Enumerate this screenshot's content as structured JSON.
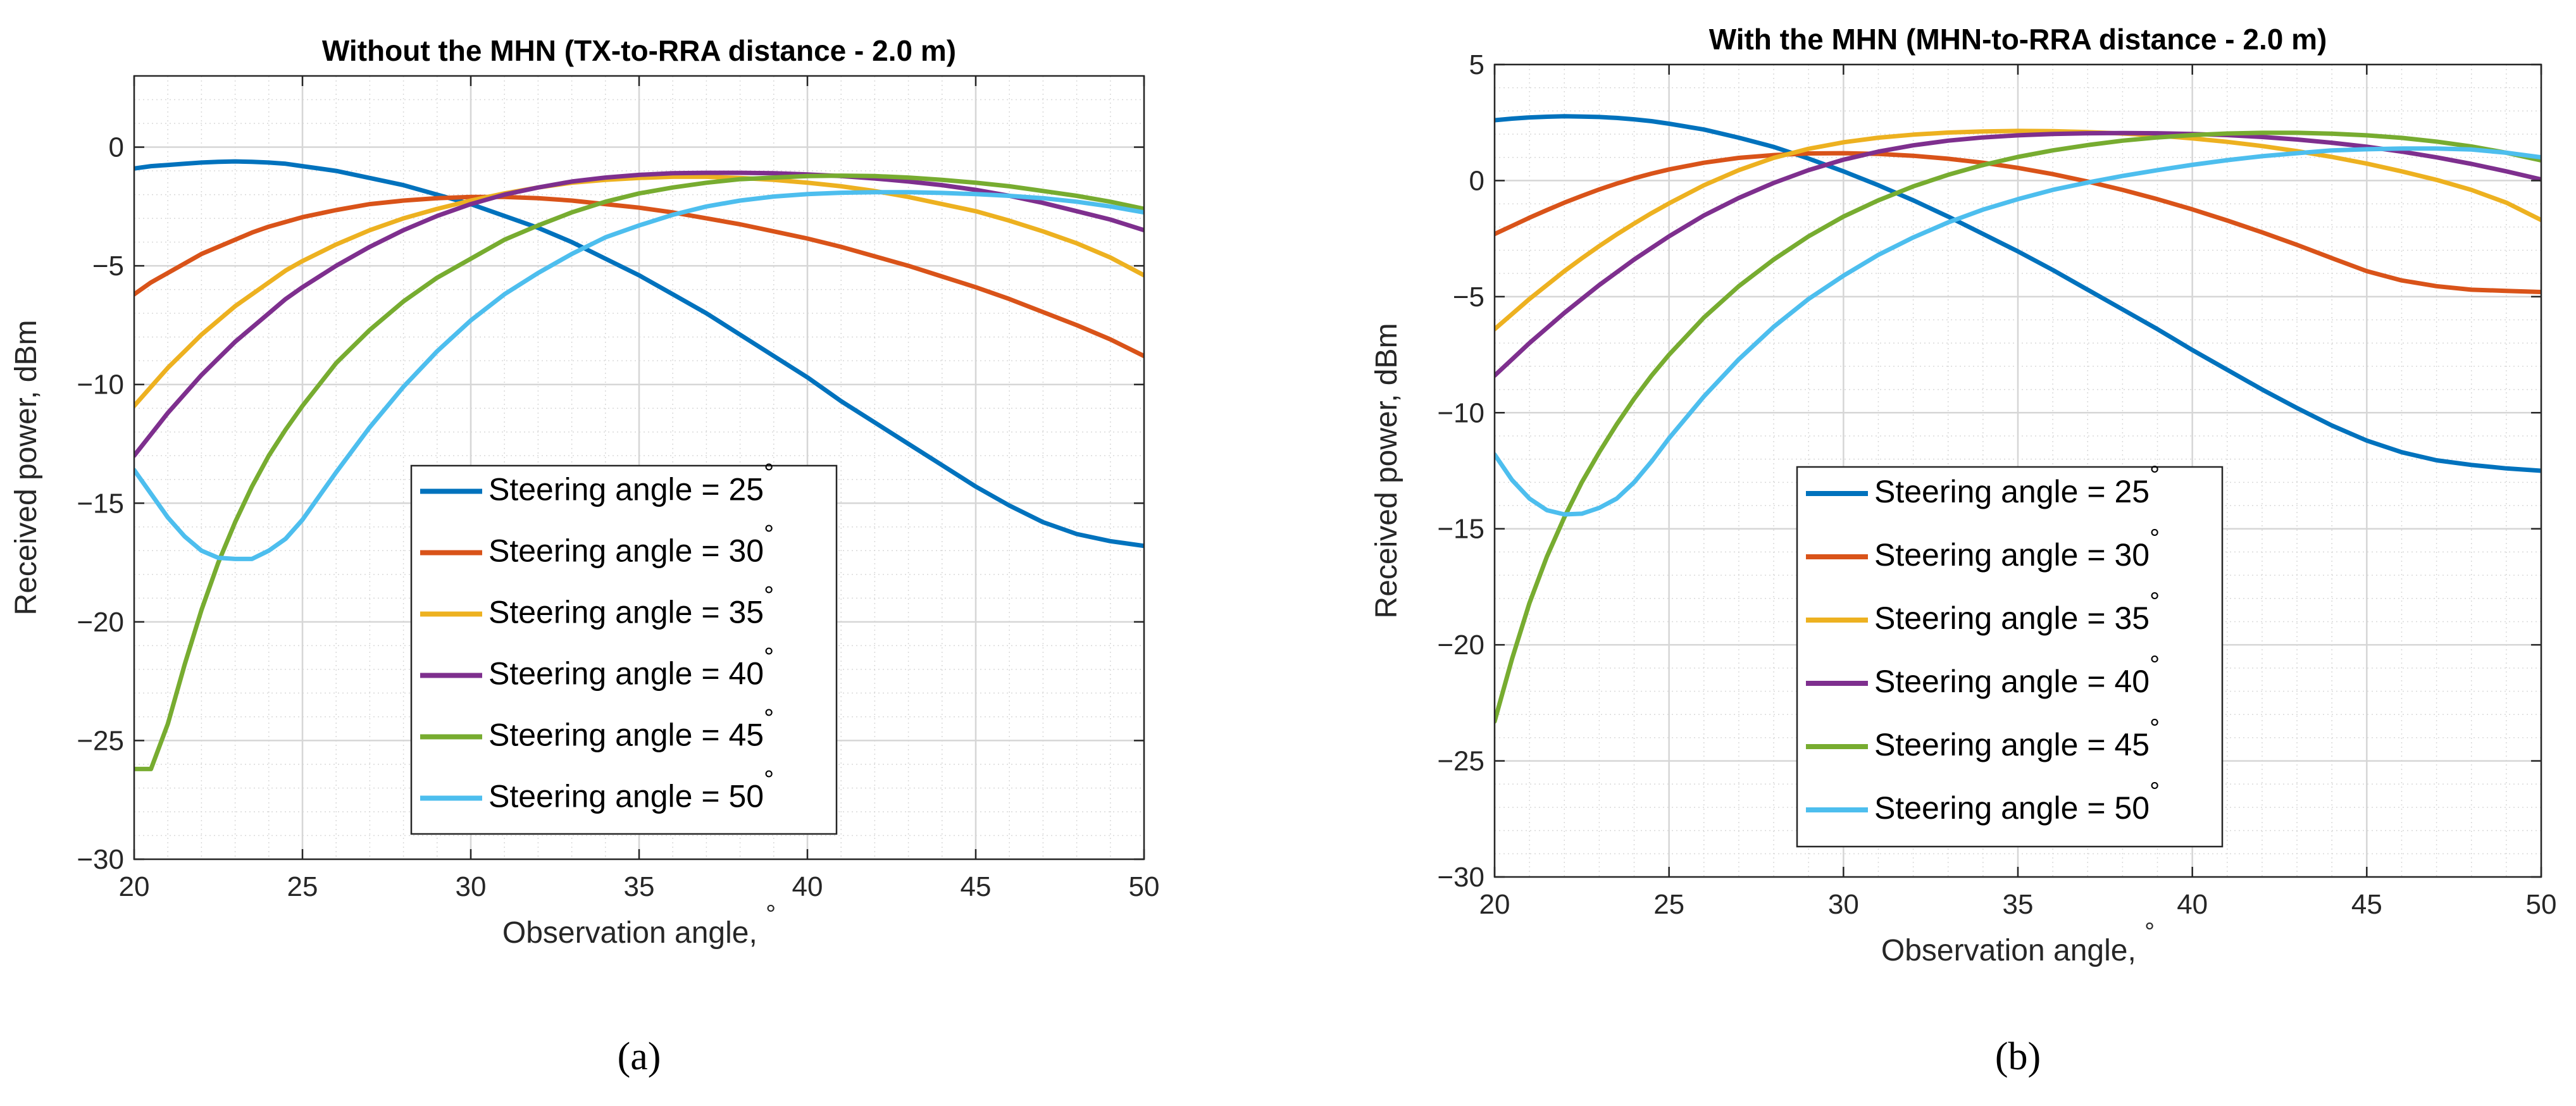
{
  "chart_data": [
    {
      "type": "line",
      "panel": "a",
      "panel_label": "(a)",
      "title": "Without the MHN (TX-to-RRA distance - 2.0 m)",
      "xlabel": "Observation angle,",
      "xlabel_unit": "°",
      "ylabel": "Received power, dBm",
      "xlim": [
        20,
        50
      ],
      "ylim": [
        -30,
        3
      ],
      "xticks": [
        20,
        25,
        30,
        35,
        40,
        45,
        50
      ],
      "yticks": [
        -30,
        -25,
        -20,
        -15,
        -10,
        -5,
        0
      ],
      "ytick_labels": [
        "−30",
        "−25",
        "−20",
        "−15",
        "−10",
        "−5",
        "0"
      ],
      "grid": true,
      "minor_grid": true,
      "legend_location": "center-right",
      "x": [
        20,
        20.5,
        21,
        21.5,
        22,
        22.5,
        23,
        23.5,
        24,
        24.5,
        25,
        26,
        27,
        28,
        29,
        30,
        31,
        32,
        33,
        34,
        35,
        36,
        37,
        38,
        39,
        40,
        41,
        42,
        43,
        44,
        45,
        46,
        47,
        48,
        49,
        50
      ],
      "series": [
        {
          "name": "Steering angle = 25",
          "color": "#0072BD",
          "values": [
            -0.9,
            -0.8,
            -0.75,
            -0.7,
            -0.65,
            -0.62,
            -0.6,
            -0.62,
            -0.65,
            -0.7,
            -0.8,
            -1.0,
            -1.3,
            -1.6,
            -2.0,
            -2.4,
            -2.9,
            -3.4,
            -4.0,
            -4.7,
            -5.4,
            -6.2,
            -7.0,
            -7.9,
            -8.8,
            -9.7,
            -10.7,
            -11.6,
            -12.5,
            -13.4,
            -14.3,
            -15.1,
            -15.8,
            -16.3,
            -16.6,
            -16.8
          ]
        },
        {
          "name": "Steering angle = 30",
          "color": "#D95319",
          "values": [
            -6.2,
            -5.7,
            -5.3,
            -4.9,
            -4.5,
            -4.2,
            -3.9,
            -3.6,
            -3.35,
            -3.15,
            -2.95,
            -2.65,
            -2.4,
            -2.25,
            -2.15,
            -2.1,
            -2.1,
            -2.15,
            -2.25,
            -2.4,
            -2.55,
            -2.75,
            -3.0,
            -3.25,
            -3.55,
            -3.85,
            -4.2,
            -4.6,
            -5.0,
            -5.45,
            -5.9,
            -6.4,
            -6.95,
            -7.5,
            -8.1,
            -8.8
          ]
        },
        {
          "name": "Steering angle = 35",
          "color": "#EDB120",
          "values": [
            -10.9,
            -10.1,
            -9.3,
            -8.6,
            -7.9,
            -7.3,
            -6.7,
            -6.2,
            -5.7,
            -5.2,
            -4.8,
            -4.1,
            -3.5,
            -3.0,
            -2.6,
            -2.25,
            -1.95,
            -1.7,
            -1.5,
            -1.38,
            -1.3,
            -1.25,
            -1.25,
            -1.3,
            -1.38,
            -1.5,
            -1.65,
            -1.85,
            -2.1,
            -2.4,
            -2.7,
            -3.1,
            -3.55,
            -4.05,
            -4.65,
            -5.4
          ]
        },
        {
          "name": "Steering angle = 40",
          "color": "#7E2F8E",
          "values": [
            -13.0,
            -12.1,
            -11.2,
            -10.4,
            -9.6,
            -8.9,
            -8.2,
            -7.6,
            -7.0,
            -6.4,
            -5.9,
            -5.0,
            -4.2,
            -3.5,
            -2.9,
            -2.4,
            -2.0,
            -1.7,
            -1.45,
            -1.28,
            -1.17,
            -1.1,
            -1.08,
            -1.08,
            -1.1,
            -1.15,
            -1.22,
            -1.32,
            -1.45,
            -1.6,
            -1.8,
            -2.05,
            -2.35,
            -2.7,
            -3.05,
            -3.5
          ]
        },
        {
          "name": "Steering angle = 45",
          "color": "#77AC30",
          "values": [
            -26.2,
            -26.2,
            -24.3,
            -21.8,
            -19.5,
            -17.5,
            -15.8,
            -14.3,
            -13.0,
            -11.9,
            -10.9,
            -9.1,
            -7.7,
            -6.5,
            -5.5,
            -4.7,
            -3.9,
            -3.3,
            -2.75,
            -2.3,
            -1.95,
            -1.7,
            -1.5,
            -1.35,
            -1.28,
            -1.22,
            -1.2,
            -1.22,
            -1.28,
            -1.38,
            -1.5,
            -1.65,
            -1.85,
            -2.05,
            -2.3,
            -2.6
          ]
        },
        {
          "name": "Steering angle = 50",
          "color": "#4DBEEE",
          "values": [
            -13.6,
            -14.6,
            -15.6,
            -16.4,
            -17.0,
            -17.3,
            -17.35,
            -17.35,
            -17.0,
            -16.5,
            -15.7,
            -13.7,
            -11.8,
            -10.1,
            -8.6,
            -7.3,
            -6.2,
            -5.3,
            -4.5,
            -3.8,
            -3.3,
            -2.85,
            -2.5,
            -2.25,
            -2.08,
            -1.98,
            -1.92,
            -1.9,
            -1.9,
            -1.93,
            -1.98,
            -2.05,
            -2.15,
            -2.3,
            -2.5,
            -2.75
          ]
        }
      ]
    },
    {
      "type": "line",
      "panel": "b",
      "panel_label": "(b)",
      "title": "With the MHN (MHN-to-RRA distance - 2.0 m)",
      "xlabel": "Observation angle,",
      "xlabel_unit": "°",
      "ylabel": "Received power, dBm",
      "xlim": [
        20,
        50
      ],
      "ylim": [
        -30,
        5
      ],
      "xticks": [
        20,
        25,
        30,
        35,
        40,
        45,
        50
      ],
      "yticks": [
        -30,
        -25,
        -20,
        -15,
        -10,
        -5,
        0,
        5
      ],
      "ytick_labels": [
        "−30",
        "−25",
        "−20",
        "−15",
        "−10",
        "−5",
        "0",
        "5"
      ],
      "grid": true,
      "minor_grid": true,
      "legend_location": "center-right",
      "x": [
        20,
        20.5,
        21,
        21.5,
        22,
        22.5,
        23,
        23.5,
        24,
        24.5,
        25,
        26,
        27,
        28,
        29,
        30,
        31,
        32,
        33,
        34,
        35,
        36,
        37,
        38,
        39,
        40,
        41,
        42,
        43,
        44,
        45,
        46,
        47,
        48,
        49,
        50
      ],
      "series": [
        {
          "name": "Steering angle = 25",
          "color": "#0072BD",
          "values": [
            2.6,
            2.67,
            2.72,
            2.75,
            2.77,
            2.76,
            2.74,
            2.7,
            2.64,
            2.56,
            2.45,
            2.2,
            1.85,
            1.45,
            0.95,
            0.4,
            -0.2,
            -0.85,
            -1.55,
            -2.3,
            -3.05,
            -3.85,
            -4.7,
            -5.55,
            -6.4,
            -7.3,
            -8.15,
            -9.0,
            -9.8,
            -10.55,
            -11.2,
            -11.7,
            -12.05,
            -12.25,
            -12.4,
            -12.5
          ]
        },
        {
          "name": "Steering angle = 30",
          "color": "#D95319",
          "values": [
            -2.3,
            -1.95,
            -1.6,
            -1.27,
            -0.95,
            -0.66,
            -0.38,
            -0.13,
            0.1,
            0.3,
            0.48,
            0.77,
            0.98,
            1.1,
            1.17,
            1.18,
            1.15,
            1.07,
            0.94,
            0.77,
            0.55,
            0.28,
            -0.04,
            -0.4,
            -0.8,
            -1.24,
            -1.72,
            -2.23,
            -2.77,
            -3.34,
            -3.9,
            -4.3,
            -4.55,
            -4.7,
            -4.75,
            -4.8
          ]
        },
        {
          "name": "Steering angle = 35",
          "color": "#EDB120",
          "values": [
            -6.4,
            -5.75,
            -5.1,
            -4.5,
            -3.9,
            -3.35,
            -2.82,
            -2.32,
            -1.85,
            -1.4,
            -0.98,
            -0.2,
            0.45,
            0.98,
            1.37,
            1.65,
            1.85,
            1.98,
            2.07,
            2.12,
            2.14,
            2.13,
            2.09,
            2.03,
            1.94,
            1.82,
            1.67,
            1.49,
            1.27,
            1.02,
            0.73,
            0.4,
            0.03,
            -0.4,
            -0.95,
            -1.7
          ]
        },
        {
          "name": "Steering angle = 40",
          "color": "#7E2F8E",
          "values": [
            -8.4,
            -7.7,
            -7.0,
            -6.35,
            -5.7,
            -5.1,
            -4.5,
            -3.95,
            -3.4,
            -2.9,
            -2.4,
            -1.5,
            -0.75,
            -0.1,
            0.45,
            0.9,
            1.25,
            1.52,
            1.72,
            1.86,
            1.95,
            2.01,
            2.04,
            2.05,
            2.04,
            2.01,
            1.96,
            1.88,
            1.77,
            1.63,
            1.46,
            1.25,
            1.0,
            0.72,
            0.4,
            0.05
          ]
        },
        {
          "name": "Steering angle = 45",
          "color": "#77AC30",
          "values": [
            -23.3,
            -20.6,
            -18.2,
            -16.2,
            -14.5,
            -13.0,
            -11.7,
            -10.5,
            -9.4,
            -8.4,
            -7.5,
            -5.9,
            -4.55,
            -3.4,
            -2.4,
            -1.55,
            -0.85,
            -0.25,
            0.25,
            0.67,
            1.02,
            1.3,
            1.53,
            1.72,
            1.86,
            1.96,
            2.03,
            2.06,
            2.06,
            2.02,
            1.95,
            1.84,
            1.68,
            1.47,
            1.2,
            0.87
          ]
        },
        {
          "name": "Steering angle = 50",
          "color": "#4DBEEE",
          "values": [
            -11.8,
            -12.9,
            -13.7,
            -14.2,
            -14.38,
            -14.35,
            -14.1,
            -13.7,
            -13.0,
            -12.1,
            -11.1,
            -9.3,
            -7.7,
            -6.3,
            -5.1,
            -4.1,
            -3.2,
            -2.45,
            -1.8,
            -1.25,
            -0.8,
            -0.4,
            -0.08,
            0.2,
            0.45,
            0.68,
            0.88,
            1.05,
            1.18,
            1.3,
            1.35,
            1.38,
            1.38,
            1.34,
            1.2,
            1.0
          ]
        }
      ]
    }
  ]
}
